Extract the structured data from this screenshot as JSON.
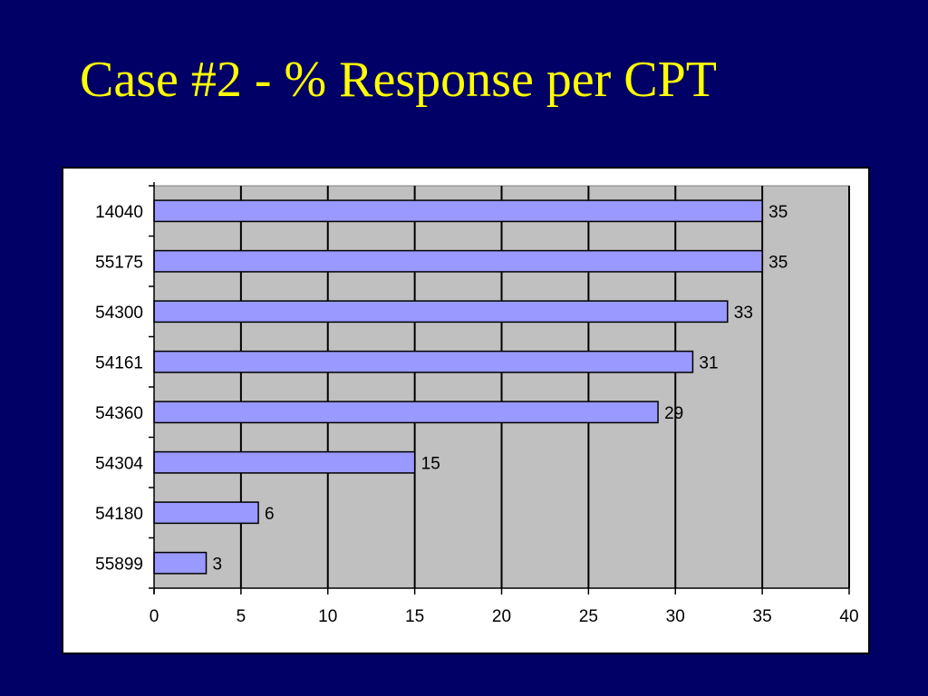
{
  "slide": {
    "title": "Case #2 - % Response per CPT"
  },
  "colors": {
    "background": "#000066",
    "title": "#ffff00",
    "plot_area": "#c0c0c0",
    "bar_fill": "#9999ff",
    "bar_stroke": "#000000"
  },
  "chart_data": {
    "type": "bar",
    "orientation": "horizontal",
    "title": "",
    "xlabel": "",
    "ylabel": "",
    "categories": [
      "14040",
      "55175",
      "54300",
      "54161",
      "54360",
      "54304",
      "54180",
      "55899"
    ],
    "values": [
      35,
      35,
      33,
      31,
      29,
      15,
      6,
      3
    ],
    "xlim": [
      0,
      40
    ],
    "x_ticks": [
      0,
      5,
      10,
      15,
      20,
      25,
      30,
      35,
      40
    ],
    "grid": true,
    "grid_axis": "x",
    "data_labels": true,
    "legend": "none"
  }
}
